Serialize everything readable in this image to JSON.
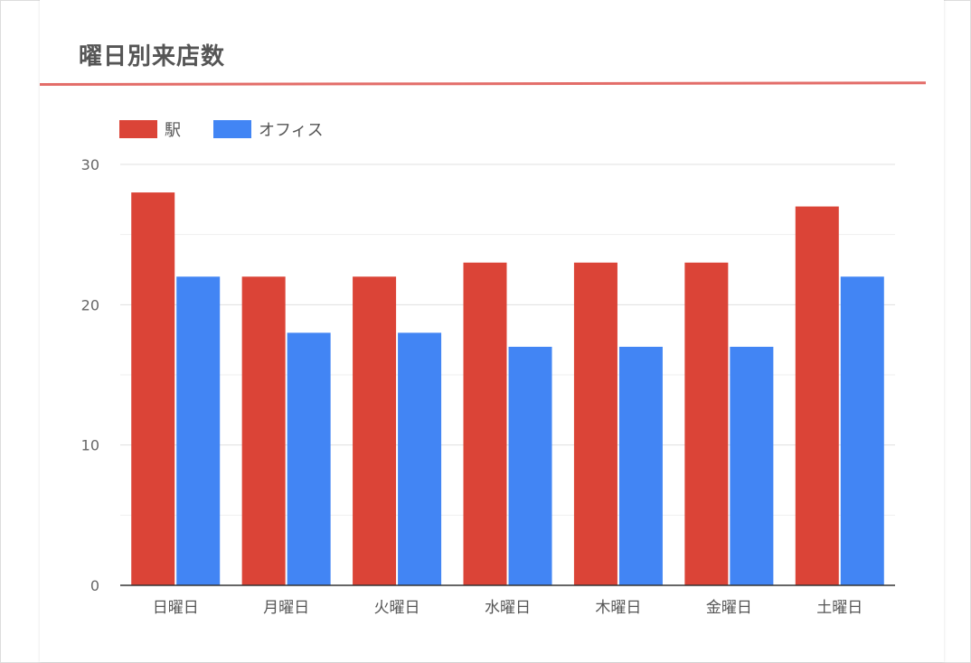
{
  "title": "曜日別来店数",
  "colors": {
    "series_1": "#db4437",
    "series_2": "#4285f4",
    "accent_rule": "#e36d69"
  },
  "chart_data": {
    "type": "bar",
    "title": "曜日別来店数",
    "xlabel": "",
    "ylabel": "",
    "categories": [
      "日曜日",
      "月曜日",
      "火曜日",
      "水曜日",
      "木曜日",
      "金曜日",
      "土曜日"
    ],
    "series": [
      {
        "name": "駅",
        "color": "#db4437",
        "values": [
          28,
          22,
          22,
          23,
          23,
          23,
          27
        ]
      },
      {
        "name": "オフィス",
        "color": "#4285f4",
        "values": [
          22,
          18,
          18,
          17,
          17,
          17,
          22
        ]
      }
    ],
    "ylim": [
      0,
      30
    ],
    "yticks": [
      0,
      10,
      20,
      30
    ],
    "grid": true,
    "legend": "top-left"
  }
}
